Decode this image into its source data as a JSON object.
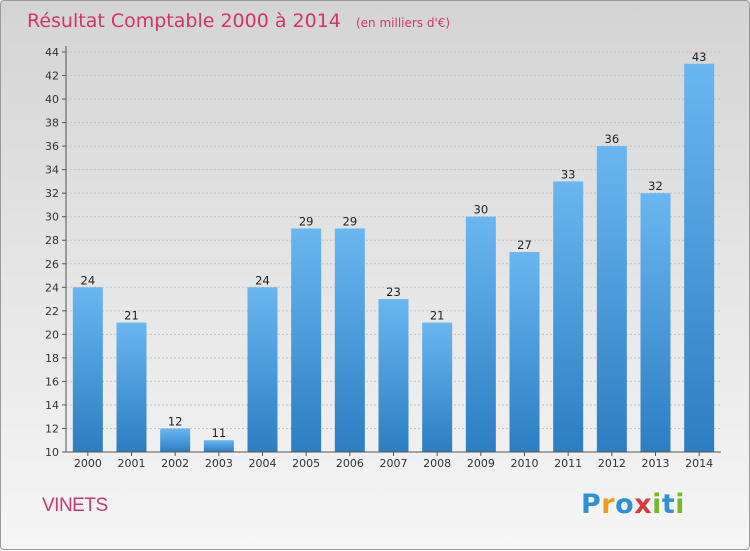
{
  "chart_data": {
    "type": "bar",
    "title": "Résultat Comptable 2000 à 2014",
    "subtitle": "(en milliers d'€)",
    "categories": [
      "2000",
      "2001",
      "2002",
      "2003",
      "2004",
      "2005",
      "2006",
      "2007",
      "2008",
      "2009",
      "2010",
      "2011",
      "2012",
      "2013",
      "2014"
    ],
    "values": [
      24,
      21,
      12,
      11,
      24,
      29,
      29,
      23,
      21,
      30,
      27,
      33,
      36,
      32,
      43
    ],
    "ylim": [
      10,
      44
    ],
    "yticks": [
      10,
      12,
      14,
      16,
      18,
      20,
      22,
      24,
      26,
      28,
      30,
      32,
      34,
      36,
      38,
      40,
      42,
      44
    ],
    "xlabel": "",
    "ylabel": "",
    "grid": true
  },
  "commune": "VINETS",
  "logo": {
    "letters": [
      "P",
      "r",
      "o",
      "x",
      "i",
      "t",
      "i"
    ],
    "colors": [
      "#2f8fd8",
      "#f29a1e",
      "#2f8fd8",
      "#d93a3a",
      "#7ab829",
      "#2f8fd8",
      "#7ab829"
    ]
  },
  "colors": {
    "bar_top": "#6ab6f0",
    "bar_bottom": "#2c7ec2",
    "accent": "#d0356b"
  }
}
